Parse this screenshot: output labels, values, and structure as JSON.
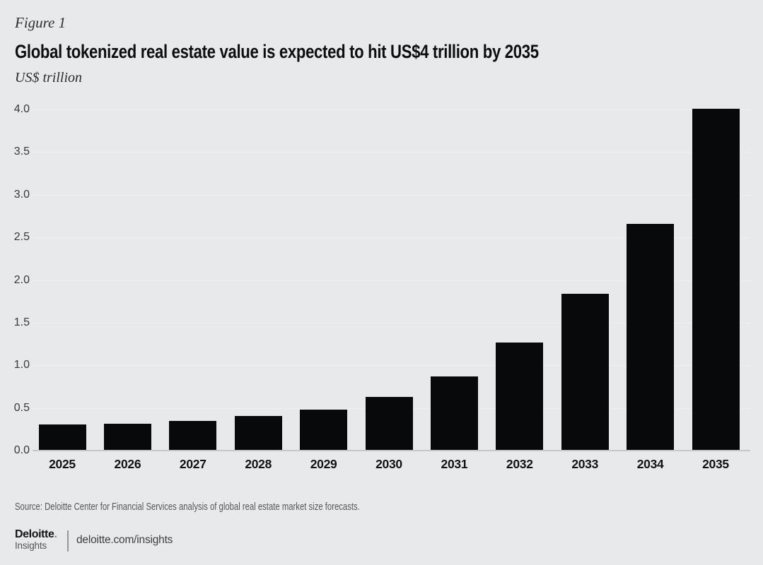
{
  "figure": {
    "label": "Figure 1",
    "title": "Global tokenized real estate value is expected to hit US$4 trillion by 2035",
    "unit": "US$ trillion"
  },
  "chart_data": {
    "type": "bar",
    "title": "Global tokenized real estate value is expected to hit US$4 trillion by 2035",
    "categories": [
      "2025",
      "2026",
      "2027",
      "2028",
      "2029",
      "2030",
      "2031",
      "2032",
      "2033",
      "2034",
      "2035"
    ],
    "values": [
      0.3,
      0.31,
      0.34,
      0.4,
      0.47,
      0.62,
      0.86,
      1.26,
      1.83,
      2.65,
      4.0
    ],
    "xlabel": "",
    "ylabel": "US$ trillion",
    "ylim": [
      0,
      4.0
    ],
    "ytick_step": 0.5,
    "ytick_labels": [
      "0.0",
      "0.5",
      "1.0",
      "1.5",
      "2.0",
      "2.5",
      "3.0",
      "3.5",
      "4.0"
    ],
    "grid": "horizontal dotted gridlines, on",
    "legend": "none",
    "bar_color": "#08090b",
    "background_color": "#e8e9ea",
    "axis_line_color": "#c6c7c9"
  },
  "footer": {
    "source": "Source: Deloitte Center for Financial Services analysis of global real estate market size forecasts.",
    "logo": {
      "brand": "Deloitte",
      "brand_dot": ".",
      "sub": "Insights",
      "url": "deloitte.com/insights"
    }
  }
}
